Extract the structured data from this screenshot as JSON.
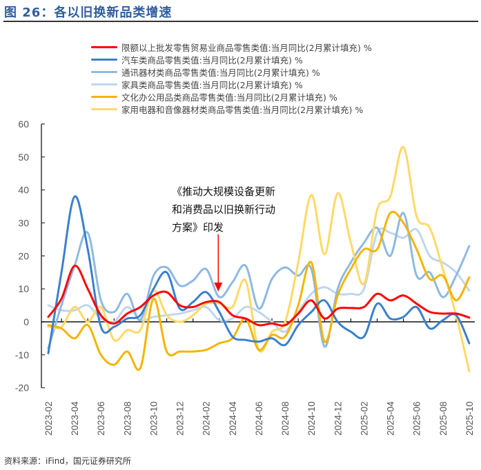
{
  "title": "图 26：各以旧换新品类增速",
  "source": "资料来源：iFind，国元证券研究所",
  "annotation": [
    "《推动大规模设备更新",
    "和消费品以旧换新行动",
    "方案》印发"
  ],
  "annotation_month": "2024-03",
  "chart_data": {
    "type": "line",
    "title": "",
    "xlabel": "",
    "ylabel": "",
    "ylim": [
      -20,
      60
    ],
    "yticks": [
      60,
      50,
      40,
      30,
      20,
      10,
      0,
      -10,
      -20
    ],
    "grid": false,
    "legend_position": "top-right",
    "x": [
      "2023-02",
      "2023-03",
      "2023-04",
      "2023-05",
      "2023-06",
      "2023-07",
      "2023-08",
      "2023-09",
      "2023-10",
      "2023-11",
      "2023-12",
      "2024-01",
      "2024-02",
      "2024-03",
      "2024-04",
      "2024-05",
      "2024-06",
      "2024-07",
      "2024-08",
      "2024-09",
      "2024-10",
      "2024-11",
      "2024-12",
      "2025-01",
      "2025-02",
      "2025-03",
      "2025-04",
      "2025-05",
      "2025-06",
      "2025-07",
      "2025-08",
      "2025-09",
      "2025-10"
    ],
    "xtick_labels": [
      "2023-02",
      "2023-04",
      "2023-06",
      "2023-08",
      "2023-10",
      "2023-12",
      "2024-02",
      "2024-04",
      "2024-06",
      "2024-08",
      "2024-10",
      "2024-12",
      "2025-02",
      "2025-04",
      "2025-06",
      "2025-08",
      "2025-10"
    ],
    "series": [
      {
        "name": "限额以上批发零售贸易业商品零售类值:当月同比(2月累计填充) %",
        "color": "#ff0000",
        "values": [
          1.5,
          7,
          17,
          10,
          2,
          -0.5,
          2.5,
          4.5,
          8,
          9,
          5,
          4.5,
          6,
          6,
          2,
          1,
          -1,
          -0.5,
          -1,
          2.5,
          6.5,
          1,
          4,
          4.2,
          4.5,
          8.5,
          6.5,
          8,
          5.5,
          3,
          2.5,
          2.5,
          1.3
        ]
      },
      {
        "name": "汽车类商品零售类值:当月同比(2月累计填充) %",
        "color": "#3a7fcc",
        "values": [
          -9.5,
          15,
          38,
          22,
          -1.5,
          -1.5,
          1,
          2,
          10,
          15,
          4,
          6,
          9,
          3,
          -4.5,
          -5.5,
          -6,
          -5,
          -7,
          -1,
          3,
          6.5,
          0,
          -3,
          -4.5,
          5.5,
          1,
          1.5,
          4.5,
          -2,
          0.5,
          2,
          -6.5
        ]
      },
      {
        "name": "通讯器材类商品零售类值:当月同比(2月累计填充) %",
        "color": "#8db9e3",
        "values": [
          -8,
          5,
          17,
          27,
          6.5,
          3,
          8.5,
          0.5,
          14,
          16.5,
          11,
          12.5,
          16,
          7.5,
          12,
          17,
          4,
          13,
          16.5,
          14,
          16,
          -7.5,
          10,
          18,
          24,
          28.5,
          20,
          33,
          14,
          15,
          7.5,
          14,
          23
        ]
      },
      {
        "name": "家具类商品零售类值:当月同比(2月累计填充) %",
        "color": "#bdd7ee",
        "values": [
          5,
          3.5,
          3.5,
          5,
          1,
          0,
          4.5,
          0.5,
          1.5,
          2,
          2.5,
          3.5,
          4.5,
          0.5,
          1,
          4.5,
          3,
          0,
          -3,
          3,
          8.5,
          10.5,
          8.5,
          8.5,
          10,
          27,
          27,
          25.5,
          28,
          20,
          18,
          15,
          9.5
        ]
      },
      {
        "name": "文化办公用品类商品零售类值:当月同比(2月累计填充) %",
        "color": "#f5b400",
        "values": [
          -1,
          -2,
          -5,
          -1,
          -10,
          -13,
          -9,
          -14,
          7,
          -9,
          -9,
          -9,
          -8.5,
          -6.5,
          -5,
          1,
          -8.5,
          -4,
          -4.5,
          5,
          18,
          -6,
          8,
          16,
          22,
          22,
          33,
          30,
          22,
          13,
          14,
          6.5,
          13.5
        ]
      },
      {
        "name": "家用电器和音像器材类商品零售类值:当月同比(2月累计填充) %",
        "color": "#ffd966",
        "values": [
          -1.5,
          -1.5,
          4.5,
          0,
          4.5,
          -5.5,
          -2.5,
          -2.5,
          9.5,
          2,
          0,
          2,
          5.5,
          5.5,
          4.5,
          12.5,
          -8.5,
          -3,
          0,
          18,
          38.5,
          20.5,
          39,
          24,
          11.5,
          34,
          38,
          53,
          32,
          28.5,
          16,
          2,
          -15
        ]
      }
    ]
  }
}
